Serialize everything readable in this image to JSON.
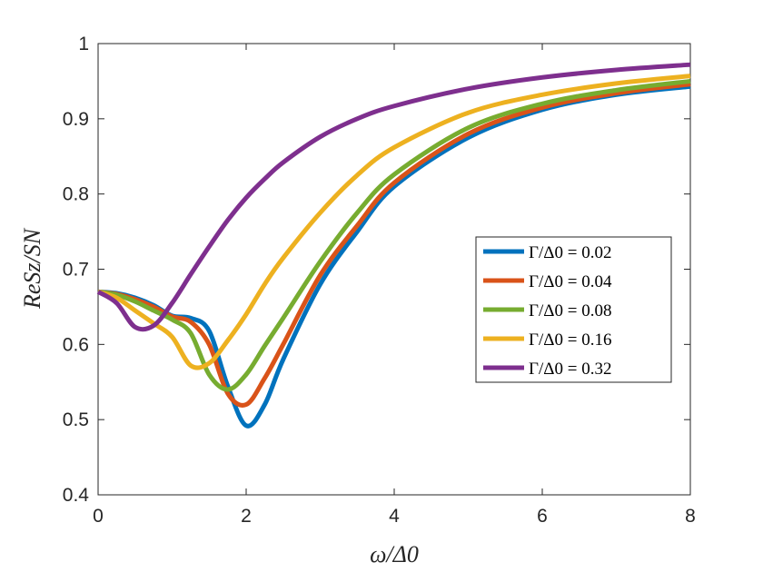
{
  "chart_data": {
    "type": "line",
    "title": "",
    "xlabel": "ω/Δ0",
    "ylabel": "ReSz/SN",
    "xlim": [
      0,
      8
    ],
    "ylim": [
      0.4,
      1
    ],
    "xticks": [
      0,
      2,
      4,
      6,
      8
    ],
    "xtick_labels": [
      "0",
      "2",
      "4",
      "6",
      "8"
    ],
    "yticks": [
      0.4,
      0.5,
      0.6,
      0.7,
      0.8,
      0.9,
      1.0
    ],
    "ytick_labels": [
      "0.4",
      "0.5",
      "0.6",
      "0.7",
      "0.8",
      "0.9",
      "1"
    ],
    "grid": false,
    "legend_position": "right",
    "x": [
      0,
      0.25,
      0.5,
      0.75,
      1.0,
      1.25,
      1.5,
      1.75,
      2.0,
      2.25,
      2.5,
      3.0,
      3.5,
      4.0,
      5.0,
      6.0,
      7.0,
      8.0
    ],
    "series": [
      {
        "name": "Γ/Δ0 = 0.02",
        "color": "#0072BD",
        "values": [
          0.67,
          0.668,
          0.662,
          0.652,
          0.638,
          0.635,
          0.618,
          0.545,
          0.492,
          0.52,
          0.58,
          0.68,
          0.75,
          0.81,
          0.875,
          0.912,
          0.932,
          0.943
        ]
      },
      {
        "name": "Γ/Δ0 = 0.04",
        "color": "#D95319",
        "values": [
          0.67,
          0.667,
          0.66,
          0.65,
          0.637,
          0.63,
          0.6,
          0.535,
          0.52,
          0.555,
          0.6,
          0.692,
          0.758,
          0.815,
          0.88,
          0.915,
          0.934,
          0.946
        ]
      },
      {
        "name": "Γ/Δ0 = 0.08",
        "color": "#77AC30",
        "values": [
          0.67,
          0.666,
          0.657,
          0.645,
          0.633,
          0.615,
          0.56,
          0.54,
          0.56,
          0.598,
          0.635,
          0.71,
          0.775,
          0.826,
          0.888,
          0.92,
          0.938,
          0.95
        ]
      },
      {
        "name": "Γ/Δ0 = 0.16",
        "color": "#EDB120",
        "values": [
          0.67,
          0.662,
          0.645,
          0.628,
          0.61,
          0.572,
          0.575,
          0.605,
          0.64,
          0.68,
          0.715,
          0.775,
          0.825,
          0.862,
          0.908,
          0.932,
          0.947,
          0.957
        ]
      },
      {
        "name": "Γ/Δ0 = 0.32",
        "color": "#7E2F8E",
        "values": [
          0.67,
          0.655,
          0.623,
          0.625,
          0.655,
          0.693,
          0.73,
          0.765,
          0.795,
          0.82,
          0.842,
          0.876,
          0.9,
          0.917,
          0.94,
          0.955,
          0.965,
          0.972
        ]
      }
    ]
  }
}
